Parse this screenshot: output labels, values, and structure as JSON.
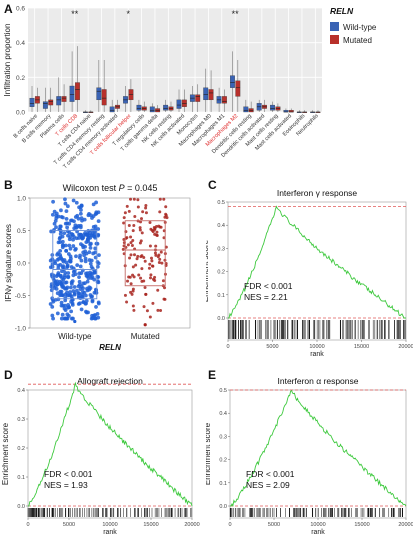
{
  "panel_labels": {
    "a": "A",
    "b": "B",
    "c": "C",
    "d": "D",
    "e": "E"
  },
  "colors": {
    "wild": "#3a63b4",
    "mut": "#b8302b",
    "gsea_line": "#3ec93e",
    "red_dash": "#e05858",
    "highlight_label": "#e03030",
    "panel_bg": "#ebebeb",
    "b_wild_point": "#1f5fd6",
    "b_mut_point": "#a8241e"
  },
  "chart_data": [
    {
      "id": "A",
      "type": "bar",
      "ylabel": "Infiltration proportion",
      "legend": {
        "title": "RELN",
        "position": "top-right",
        "entries": [
          "Wild-type",
          "Mutated"
        ]
      },
      "ylim": [
        0,
        0.6
      ],
      "yticks": [
        "0.0",
        "0.2",
        "0.4",
        "0.6"
      ],
      "categories": [
        "B cells naive",
        "B cells memory",
        "Plasma cells",
        "T cells CD8",
        "T cells CD4 naive",
        "T cells CD4 memory resting",
        "T cells CD4 memory activated",
        "T cells follicular helper",
        "T regulatory cells",
        "T cells gamma delta",
        "NK cells resting",
        "NK cells activated",
        "Monocytes",
        "Macrophages M0",
        "Macrophages M1",
        "Macrophages M2",
        "Dendritic cells resting",
        "Dendritic cells activated",
        "Mast cells resting",
        "Mast cells activated",
        "Eosinophils",
        "Neutrophils"
      ],
      "highlighted": [
        3,
        7,
        15
      ],
      "significance": [
        {
          "index": 3,
          "label": "**"
        },
        {
          "index": 7,
          "label": "*"
        },
        {
          "index": 15,
          "label": "**"
        }
      ],
      "series": [
        {
          "name": "Wild-type",
          "boxes": [
            [
              0.0,
              0.03,
              0.05,
              0.08,
              0.15
            ],
            [
              0.0,
              0.02,
              0.05,
              0.06,
              0.14
            ],
            [
              0.0,
              0.04,
              0.07,
              0.09,
              0.2
            ],
            [
              0.0,
              0.06,
              0.1,
              0.15,
              0.35
            ],
            [
              0.0,
              0.0,
              0.0,
              0.0,
              0.01
            ],
            [
              0.0,
              0.07,
              0.12,
              0.14,
              0.3
            ],
            [
              0.0,
              0.0,
              0.01,
              0.03,
              0.07
            ],
            [
              0.0,
              0.05,
              0.07,
              0.09,
              0.15
            ],
            [
              0.0,
              0.01,
              0.02,
              0.04,
              0.07
            ],
            [
              0.0,
              0.0,
              0.01,
              0.03,
              0.05
            ],
            [
              0.0,
              0.01,
              0.02,
              0.04,
              0.07
            ],
            [
              0.0,
              0.02,
              0.04,
              0.07,
              0.13
            ],
            [
              0.0,
              0.06,
              0.08,
              0.1,
              0.15
            ],
            [
              0.0,
              0.07,
              0.1,
              0.14,
              0.25
            ],
            [
              0.0,
              0.05,
              0.07,
              0.09,
              0.14
            ],
            [
              0.0,
              0.14,
              0.17,
              0.21,
              0.35
            ],
            [
              0.0,
              0.0,
              0.01,
              0.03,
              0.07
            ],
            [
              0.0,
              0.01,
              0.03,
              0.05,
              0.07
            ],
            [
              0.0,
              0.01,
              0.02,
              0.04,
              0.06
            ],
            [
              0.0,
              0.0,
              0.0,
              0.01,
              0.02
            ],
            [
              0.0,
              0.0,
              0.0,
              0.0,
              0.01
            ],
            [
              0.0,
              0.0,
              0.0,
              0.0,
              0.01
            ]
          ]
        },
        {
          "name": "Mutated",
          "boxes": [
            [
              0.0,
              0.05,
              0.07,
              0.09,
              0.14
            ],
            [
              0.0,
              0.04,
              0.06,
              0.07,
              0.14
            ],
            [
              0.0,
              0.06,
              0.08,
              0.09,
              0.16
            ],
            [
              0.0,
              0.07,
              0.13,
              0.17,
              0.38
            ],
            [
              0.0,
              0.0,
              0.0,
              0.0,
              0.01
            ],
            [
              0.0,
              0.04,
              0.08,
              0.13,
              0.3
            ],
            [
              0.0,
              0.02,
              0.03,
              0.04,
              0.07
            ],
            [
              0.0,
              0.07,
              0.1,
              0.13,
              0.19
            ],
            [
              0.0,
              0.01,
              0.02,
              0.03,
              0.06
            ],
            [
              0.0,
              0.0,
              0.01,
              0.02,
              0.04
            ],
            [
              0.0,
              0.01,
              0.02,
              0.03,
              0.06
            ],
            [
              0.0,
              0.03,
              0.05,
              0.07,
              0.13
            ],
            [
              0.0,
              0.06,
              0.09,
              0.1,
              0.16
            ],
            [
              0.0,
              0.07,
              0.11,
              0.13,
              0.24
            ],
            [
              0.0,
              0.05,
              0.06,
              0.09,
              0.13
            ],
            [
              0.0,
              0.09,
              0.14,
              0.18,
              0.3
            ],
            [
              0.0,
              0.0,
              0.01,
              0.02,
              0.06
            ],
            [
              0.0,
              0.02,
              0.03,
              0.04,
              0.07
            ],
            [
              0.0,
              0.01,
              0.02,
              0.03,
              0.05
            ],
            [
              0.0,
              0.0,
              0.0,
              0.01,
              0.02
            ],
            [
              0.0,
              0.0,
              0.0,
              0.0,
              0.01
            ],
            [
              0.0,
              0.0,
              0.0,
              0.0,
              0.01
            ]
          ]
        }
      ]
    },
    {
      "id": "B",
      "type": "scatter",
      "title": "Wilcoxon test P = 0.045",
      "title_parts": {
        "prefix": "Wilcoxon test ",
        "p": "P",
        "rest": " = 0.045"
      },
      "ylabel": "IFNγ signature scores",
      "xlabel": "RELN",
      "categories": [
        "Wild-type",
        "Mutated"
      ],
      "ylim": [
        -1.0,
        1.0
      ],
      "yticks": [
        "-1.0",
        "-0.5",
        "0.0",
        "0.5",
        "1.0"
      ],
      "boxes": [
        [
          -0.9,
          -0.55,
          -0.1,
          0.5,
          0.98
        ],
        [
          -0.95,
          -0.35,
          0.2,
          0.65,
          0.98
        ]
      ],
      "n_points": [
        400,
        140
      ],
      "outlier_low": [
        -0.9,
        -0.95
      ]
    },
    {
      "id": "C",
      "type": "line",
      "title": "Interferon γ response",
      "xlabel": "rank",
      "ylabel": "Enrichment score",
      "xlim": [
        0,
        20000
      ],
      "ylim": [
        0,
        0.5
      ],
      "xticks": [
        "0",
        "5000",
        "10000",
        "15000",
        "20000"
      ],
      "yticks": [
        "0.0",
        "0.1",
        "0.2",
        "0.3",
        "0.4",
        "0.5"
      ],
      "peak": {
        "x": 5500,
        "y": 0.48
      },
      "annotation": [
        "FDR < 0.001",
        "NES = 2.21"
      ]
    },
    {
      "id": "D",
      "type": "line",
      "title": "Allograft rejection",
      "xlabel": "rank",
      "ylabel": "Enrichment score",
      "xlim": [
        0,
        20000
      ],
      "ylim": [
        0,
        0.4
      ],
      "xticks": [
        "0",
        "5000",
        "10000",
        "15000",
        "20000"
      ],
      "yticks": [
        "0.0",
        "0.1",
        "0.2",
        "0.3",
        "0.4"
      ],
      "peak": {
        "x": 5800,
        "y": 0.42
      },
      "annotation": [
        "FDR < 0.001",
        "NES = 1.93"
      ]
    },
    {
      "id": "E",
      "type": "line",
      "title": "Interferon α response",
      "xlabel": "rank",
      "ylabel": "Enrichment score",
      "xlim": [
        0,
        20000
      ],
      "ylim": [
        0,
        0.5
      ],
      "xticks": [
        "0",
        "5000",
        "10000",
        "15000",
        "20000"
      ],
      "yticks": [
        "0.0",
        "0.1",
        "0.2",
        "0.3",
        "0.4",
        "0.5"
      ],
      "peak": {
        "x": 7000,
        "y": 0.5
      },
      "annotation": [
        "FDR < 0.001",
        "NES = 2.09"
      ]
    }
  ]
}
